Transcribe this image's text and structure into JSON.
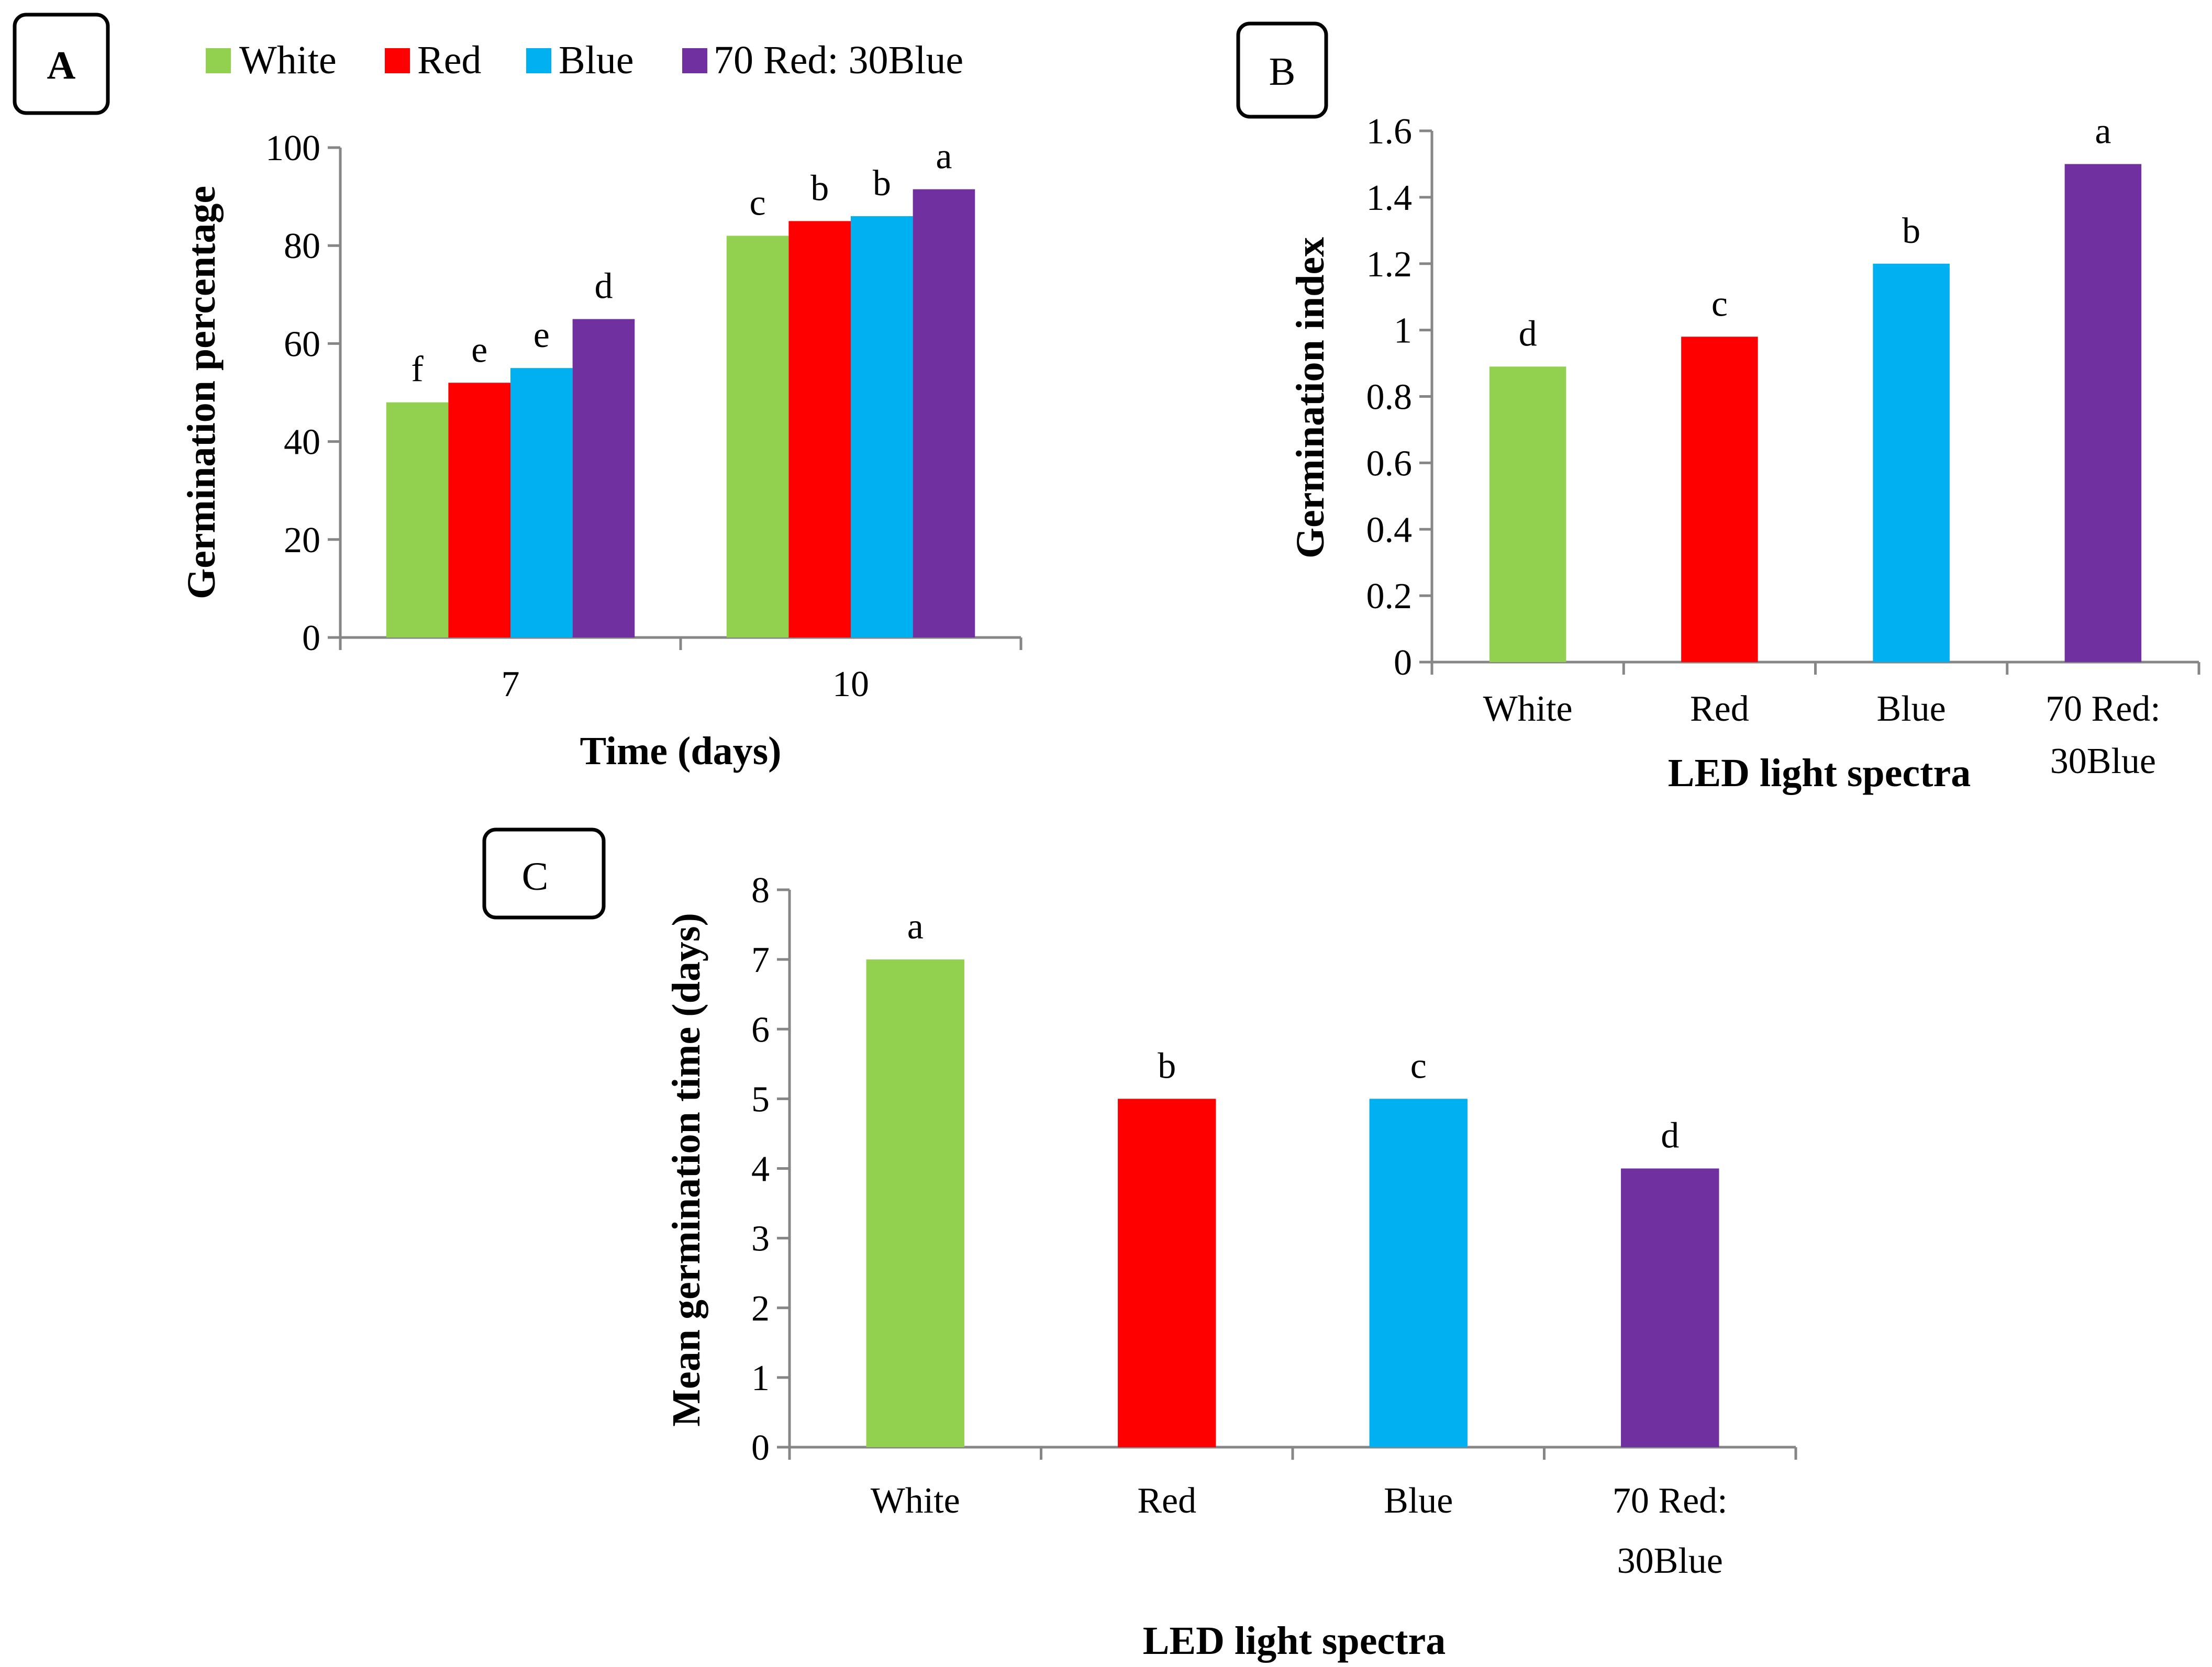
{
  "colors": {
    "White": "#92d050",
    "Red": "#ff0000",
    "Blue": "#00b0f0",
    "70 Red: 30Blue": "#7030a0"
  },
  "legend": [
    "White",
    "Red",
    "Blue",
    "70 Red: 30Blue"
  ],
  "chart_data": [
    {
      "panel": "A",
      "type": "bar",
      "categories": [
        "7",
        "10"
      ],
      "series": [
        {
          "name": "White",
          "values": [
            48,
            82
          ],
          "letters": [
            "f",
            "c"
          ]
        },
        {
          "name": "Red",
          "values": [
            52,
            85
          ],
          "letters": [
            "e",
            "b"
          ]
        },
        {
          "name": "Blue",
          "values": [
            55,
            86
          ],
          "letters": [
            "e",
            "b"
          ]
        },
        {
          "name": "70 Red: 30Blue",
          "values": [
            65,
            91.5
          ],
          "letters": [
            "d",
            "a"
          ]
        }
      ],
      "xlabel": "Time (days)",
      "ylabel": "Germination percentage",
      "ylim": [
        0,
        100
      ],
      "yticks": [
        "0",
        "20",
        "40",
        "60",
        "80",
        "100"
      ],
      "legend": "top"
    },
    {
      "panel": "B",
      "type": "bar",
      "categories": [
        "White",
        "Red",
        "Blue",
        "70 Red: 30Blue"
      ],
      "category_lines": [
        [
          "White"
        ],
        [
          "Red"
        ],
        [
          "Blue"
        ],
        [
          "70 Red:",
          "30Blue"
        ]
      ],
      "values": [
        0.89,
        0.98,
        1.2,
        1.5
      ],
      "letters": [
        "d",
        "c",
        "b",
        "a"
      ],
      "xlabel": "LED light spectra",
      "ylabel": "Germination index",
      "ylim": [
        0,
        1.6
      ],
      "yticks": [
        "0",
        "0.2",
        "0.4",
        "0.6",
        "0.8",
        "1",
        "1.2",
        "1.4",
        "1.6"
      ]
    },
    {
      "panel": "C",
      "type": "bar",
      "categories": [
        "White",
        "Red",
        "Blue",
        "70 Red: 30Blue"
      ],
      "category_lines": [
        [
          "White"
        ],
        [
          "Red"
        ],
        [
          "Blue"
        ],
        [
          "70 Red:",
          "30Blue"
        ]
      ],
      "values": [
        7,
        5,
        5,
        4
      ],
      "letters": [
        "a",
        "b",
        "c",
        "d"
      ],
      "xlabel": "LED light spectra",
      "ylabel": "Mean germination time (days)",
      "ylim": [
        0,
        8
      ],
      "yticks": [
        "0",
        "1",
        "2",
        "3",
        "4",
        "5",
        "6",
        "7",
        "8"
      ]
    }
  ]
}
